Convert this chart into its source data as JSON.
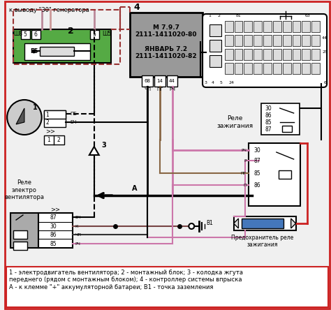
{
  "bg_color": "#f0f0f0",
  "border_color": "#cc2222",
  "legend_text": "1 - электродвигатель вентилятора; 2 - монтажный блок; 3 - колодка жгута\nпереднего (рядом с монтажным блоком); 4 - контроллер системы впрыска\nА - к клемме \"+\" аккумуляторной батареи; В1 - точка заземления",
  "header_text": "к выводу \"30\" генератора",
  "controller_text": "М 7.9.7\n2111-1411020-80\n\nЯНВАРЬ 7.2\n2111-1411020-82",
  "relay_ignition_label": "Реле\nзажигания",
  "relay_fan_label": "Реле\nэлектро\nвентилятора",
  "fuse_label": "Предохранитель реле\nзажигания",
  "wire_red": "#cc2222",
  "wire_pink": "#cc77aa",
  "wire_darkred": "#993333",
  "wire_black": "#111111",
  "wire_brown": "#774444",
  "fuse_color": "#4477bb",
  "green_color": "#55aa44",
  "gray_color": "#aaaaaa",
  "controller_bg": "#999999",
  "white": "#ffffff",
  "lightgray": "#dddddd"
}
